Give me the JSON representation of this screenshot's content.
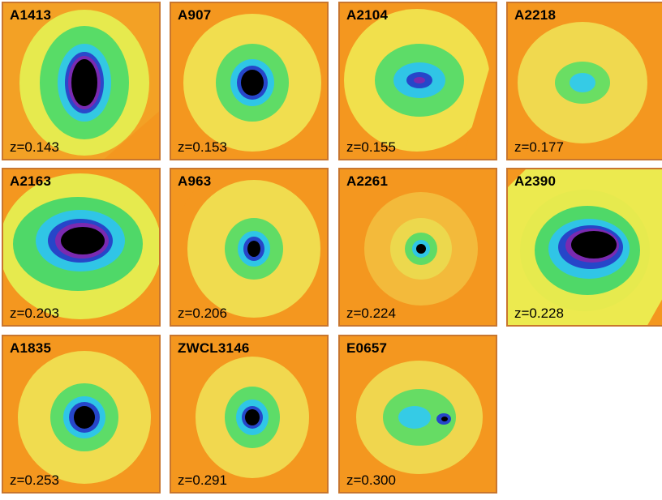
{
  "clusters": [
    {
      "name": "A1413",
      "z": "z=0.143"
    },
    {
      "name": "A907",
      "z": "z=0.153"
    },
    {
      "name": "A2104",
      "z": "z=0.155"
    },
    {
      "name": "A2218",
      "z": "z=0.177"
    },
    {
      "name": "A2163",
      "z": "z=0.203"
    },
    {
      "name": "A963",
      "z": "z=0.206"
    },
    {
      "name": "A2261",
      "z": "z=0.224"
    },
    {
      "name": "A2390",
      "z": "z=0.228"
    },
    {
      "name": "A1835",
      "z": "z=0.253"
    },
    {
      "name": "ZWCL3146",
      "z": "z=0.291"
    },
    {
      "name": "E0657",
      "z": "z=0.300"
    }
  ],
  "colors": {
    "background": "#f4971f",
    "halo": "#f1e44a",
    "green": "#3fd36a",
    "cyan": "#2fc6e6",
    "blue": "#2646c9",
    "purple": "#7a2ab0",
    "core": "#000000"
  }
}
